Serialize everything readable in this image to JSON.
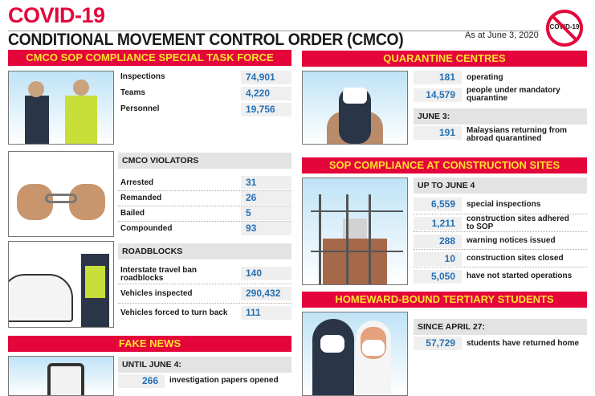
{
  "header": {
    "logo": "COVID-19",
    "title": "CONDITIONAL MOVEMENT CONTROL ORDER (CMCO)",
    "as_at": "As at June 3, 2020",
    "no_covid_icon_text": "COVID-19"
  },
  "colors": {
    "accent": "#e4063b",
    "heading_text": "#ffe12b",
    "value": "#2471b5"
  },
  "task_force": {
    "title": "CMCO SOP COMPLIANCE SPECIAL TASK FORCE",
    "rows": [
      {
        "label": "Inspections",
        "value": "74,901"
      },
      {
        "label": "Teams",
        "value": "4,220"
      },
      {
        "label": "Personnel",
        "value": "19,756"
      }
    ]
  },
  "violators": {
    "heading": "CMCO VIOLATORS",
    "rows": [
      {
        "label": "Arrested",
        "value": "31"
      },
      {
        "label": "Remanded",
        "value": "26"
      },
      {
        "label": "Bailed",
        "value": "5"
      },
      {
        "label": "Compounded",
        "value": "93"
      }
    ]
  },
  "roadblocks": {
    "heading": "ROADBLOCKS",
    "rows": [
      {
        "label": "Interstate travel ban roadblocks",
        "value": "140"
      },
      {
        "label": "Vehicles inspected",
        "value": "290,432"
      },
      {
        "label": "Vehicles forced to turn back",
        "value": "111"
      }
    ]
  },
  "fake_news": {
    "title": "FAKE NEWS",
    "heading": "UNTIL JUNE 4:",
    "rows": [
      {
        "value": "266",
        "label": "investigation papers opened"
      }
    ]
  },
  "quarantine": {
    "title": "QUARANTINE CENTRES",
    "rows": [
      {
        "value": "181",
        "label": "operating"
      },
      {
        "value": "14,579",
        "label": "people under mandatory quarantine"
      }
    ],
    "subheading": "JUNE 3:",
    "rows2": [
      {
        "value": "191",
        "label": "Malaysians returning from abroad quarantined"
      }
    ]
  },
  "construction": {
    "title": "SOP COMPLIANCE AT CONSTRUCTION SITES",
    "heading": "UP TO JUNE 4",
    "rows": [
      {
        "value": "6,559",
        "label": "special inspections"
      },
      {
        "value": "1,211",
        "label": "construction sites adhered to SOP"
      },
      {
        "value": "288",
        "label": "warning notices issued"
      },
      {
        "value": "10",
        "label": "construction sites closed"
      },
      {
        "value": "5,050",
        "label": "have not started operations"
      }
    ]
  },
  "students": {
    "title": "HOMEWARD-BOUND TERTIARY STUDENTS",
    "heading": "SINCE APRIL 27:",
    "rows": [
      {
        "value": "57,729",
        "label": "students have returned home"
      }
    ]
  }
}
